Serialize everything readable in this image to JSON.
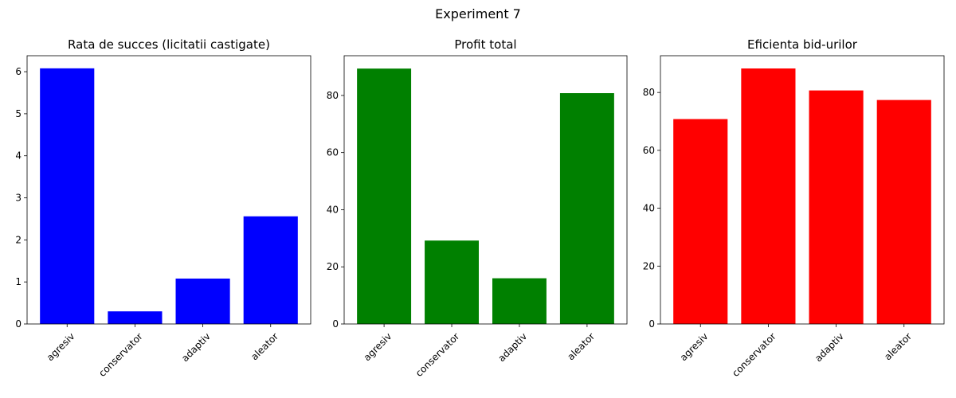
{
  "figure": {
    "suptitle": "Experiment 7"
  },
  "chart_data": [
    {
      "type": "bar",
      "title": "Rata de succes (licitatii castigate)",
      "categories": [
        "agresiv",
        "conservator",
        "adaptiv",
        "aleator"
      ],
      "values": [
        6.08,
        0.3,
        1.08,
        2.56
      ],
      "ylim": [
        0,
        6.38
      ],
      "yticks": [
        "0",
        "1",
        "2",
        "3",
        "4",
        "5",
        "6"
      ],
      "color": "#0000ff",
      "grid": false,
      "xlabel": "",
      "ylabel": ""
    },
    {
      "type": "bar",
      "title": "Profit total",
      "categories": [
        "agresiv",
        "conservator",
        "adaptiv",
        "aleator"
      ],
      "values": [
        89.4,
        29.2,
        16.0,
        80.8
      ],
      "ylim": [
        0,
        93.9
      ],
      "yticks": [
        "0",
        "20",
        "40",
        "60",
        "80"
      ],
      "color": "#008000",
      "grid": false,
      "xlabel": "",
      "ylabel": ""
    },
    {
      "type": "bar",
      "title": "Eficienta bid-urilor",
      "categories": [
        "agresiv",
        "conservator",
        "adaptiv",
        "aleator"
      ],
      "values": [
        70.8,
        88.3,
        80.7,
        77.4
      ],
      "ylim": [
        0,
        92.7
      ],
      "yticks": [
        "0",
        "20",
        "40",
        "60",
        "80"
      ],
      "color": "#ff0000",
      "grid": false,
      "xlabel": "",
      "ylabel": ""
    }
  ]
}
